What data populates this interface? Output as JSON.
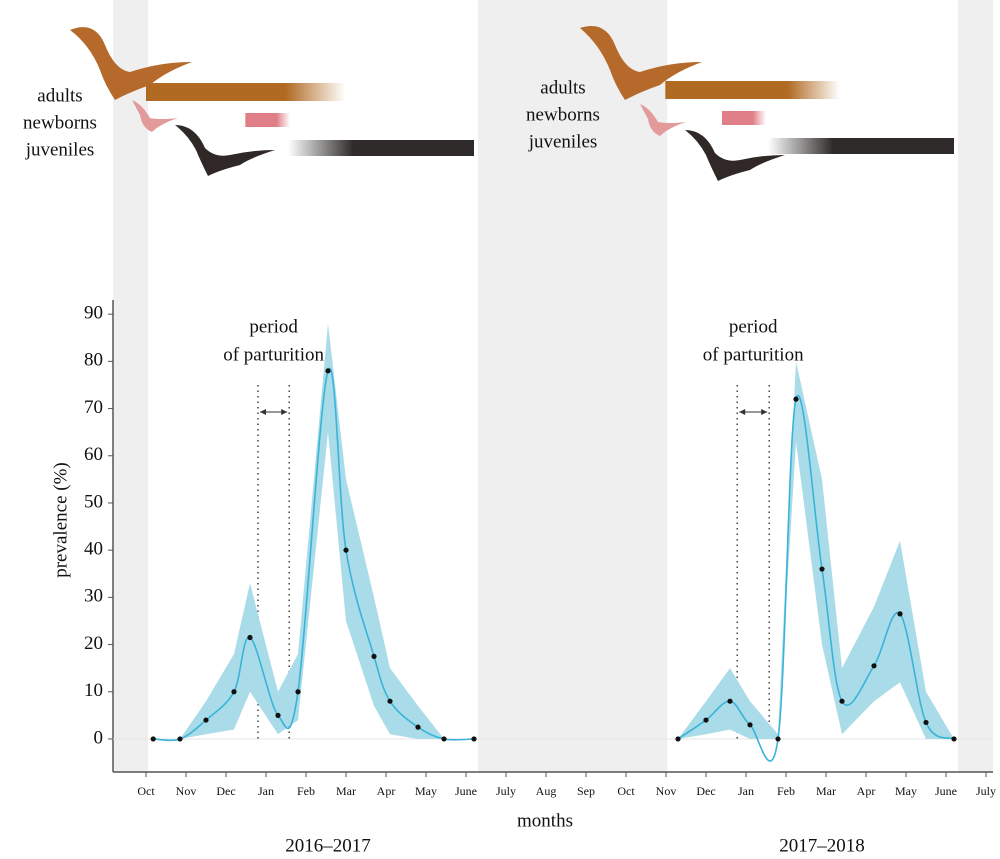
{
  "chart_data": {
    "type": "line",
    "ylabel": "prevalence (%)",
    "xlabel": "months",
    "panel_labels": [
      "2016–2017",
      "2017–2018"
    ],
    "xlim": [
      -0.825,
      21.175
    ],
    "ylim": [
      -7,
      93
    ],
    "yticks": [
      0,
      10,
      20,
      30,
      40,
      50,
      60,
      70,
      80,
      90
    ],
    "xticks": [
      {
        "value": 0,
        "label": "Oct"
      },
      {
        "value": 1,
        "label": "Nov"
      },
      {
        "value": 2,
        "label": "Dec"
      },
      {
        "value": 3,
        "label": "Jan"
      },
      {
        "value": 4,
        "label": "Feb"
      },
      {
        "value": 5,
        "label": "Mar"
      },
      {
        "value": 6,
        "label": "Apr"
      },
      {
        "value": 7,
        "label": "May"
      },
      {
        "value": 8,
        "label": "June"
      },
      {
        "value": 9,
        "label": "July"
      },
      {
        "value": 10,
        "label": "Aug"
      },
      {
        "value": 11,
        "label": "Sep"
      },
      {
        "value": 12,
        "label": "Oct"
      },
      {
        "value": 13,
        "label": "Nov"
      },
      {
        "value": 14,
        "label": "Dec"
      },
      {
        "value": 15,
        "label": "Jan"
      },
      {
        "value": 16,
        "label": "Feb"
      },
      {
        "value": 17,
        "label": "Mar"
      },
      {
        "value": 18,
        "label": "Apr"
      },
      {
        "value": 19,
        "label": "May"
      },
      {
        "value": 20,
        "label": "June"
      },
      {
        "value": 21,
        "label": "July"
      }
    ],
    "shaded_spans": [
      [
        -0.825,
        0.05
      ],
      [
        8.3,
        13.03
      ],
      [
        20.3,
        21.175
      ]
    ],
    "series": [
      {
        "color": "#3ab3d8",
        "band_color": "#a9dce8",
        "x": [
          0.18,
          0.85,
          1.5,
          2.2,
          2.6,
          3.3,
          3.8,
          4.55,
          5.0,
          5.7,
          6.1,
          6.8,
          7.45,
          8.2
        ],
        "values": [
          0,
          0,
          4,
          10,
          21.5,
          5,
          10,
          78,
          40,
          17.5,
          8,
          2.5,
          0,
          0
        ],
        "upper": [
          0,
          0,
          8,
          18,
          33,
          10,
          18,
          88,
          55,
          30,
          15,
          7,
          0,
          0
        ],
        "lower": [
          0,
          0,
          1,
          2,
          10,
          1,
          4,
          65,
          25,
          7,
          1,
          0,
          0,
          0
        ]
      },
      {
        "color": "#3ab3d8",
        "band_color": "#a9dce8",
        "x": [
          13.3,
          14.0,
          14.6,
          15.1,
          15.8,
          16.25,
          16.9,
          17.4,
          18.2,
          18.85,
          19.5,
          20.2
        ],
        "values": [
          0,
          4,
          8,
          3,
          0,
          72,
          36,
          8,
          15.5,
          26.5,
          3.5,
          0
        ],
        "upper": [
          0,
          8,
          15,
          8,
          1,
          80,
          55,
          15,
          28,
          42,
          10,
          0
        ],
        "lower": [
          0,
          1,
          2,
          0,
          0,
          63,
          20,
          1,
          8,
          12,
          0,
          0
        ]
      }
    ],
    "annotations": [
      {
        "lines": [
          "period",
          "of parturition"
        ],
        "x": [
          2.8,
          3.58
        ]
      },
      {
        "lines": [
          "period",
          "of parturition"
        ],
        "x": [
          14.78,
          15.58
        ]
      }
    ],
    "stages": [
      {
        "name": "adults",
        "color": "#b06a22",
        "fade": "right",
        "spans": [
          [
            0,
            4.98
          ],
          [
            12.98,
            17.35
          ]
        ]
      },
      {
        "name": "newborns",
        "color": "#e07f88",
        "fade": "right",
        "spans": [
          [
            2.48,
            3.6
          ],
          [
            14.4,
            15.5
          ]
        ]
      },
      {
        "name": "juveniles",
        "color": "#2e2b2a",
        "fade": "left",
        "spans": [
          [
            3.55,
            8.2
          ],
          [
            15.55,
            20.2
          ]
        ]
      }
    ]
  }
}
